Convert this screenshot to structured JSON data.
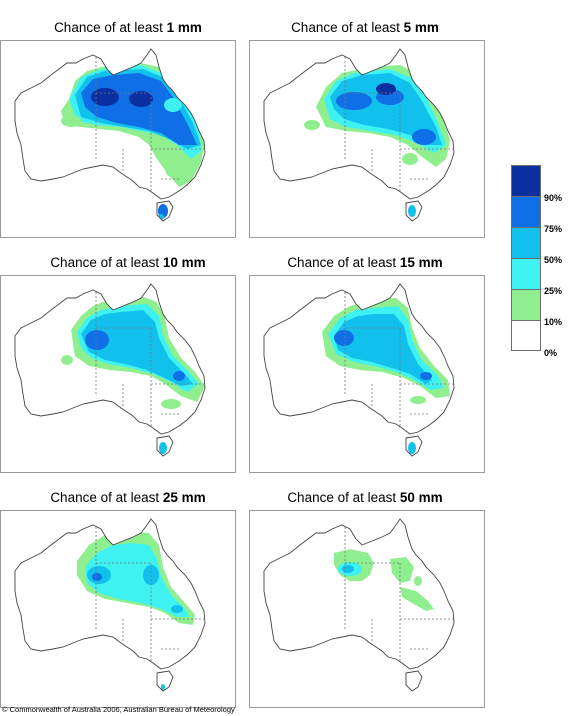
{
  "panels": [
    {
      "prefix": "Chance of at least ",
      "amount": "1 mm"
    },
    {
      "prefix": "Chance of at least ",
      "amount": "5 mm"
    },
    {
      "prefix": "Chance of at least ",
      "amount": "10 mm"
    },
    {
      "prefix": "Chance of at least ",
      "amount": "15 mm"
    },
    {
      "prefix": "Chance of at least ",
      "amount": "25 mm"
    },
    {
      "prefix": "Chance of at least ",
      "amount": "50 mm"
    }
  ],
  "legend": {
    "labels": [
      "90%",
      "75%",
      "50%",
      "25%",
      "10%",
      "0%"
    ],
    "colors": {
      "c90": "#0a2fa0",
      "c75": "#0f6fe6",
      "c50": "#12c0ee",
      "c25": "#3ef2f2",
      "c10": "#8fef8f",
      "c0": "#ffffff"
    }
  },
  "copyright": "© Commonwealth of Australia 2006, Australian Bureau of Meteorology"
}
